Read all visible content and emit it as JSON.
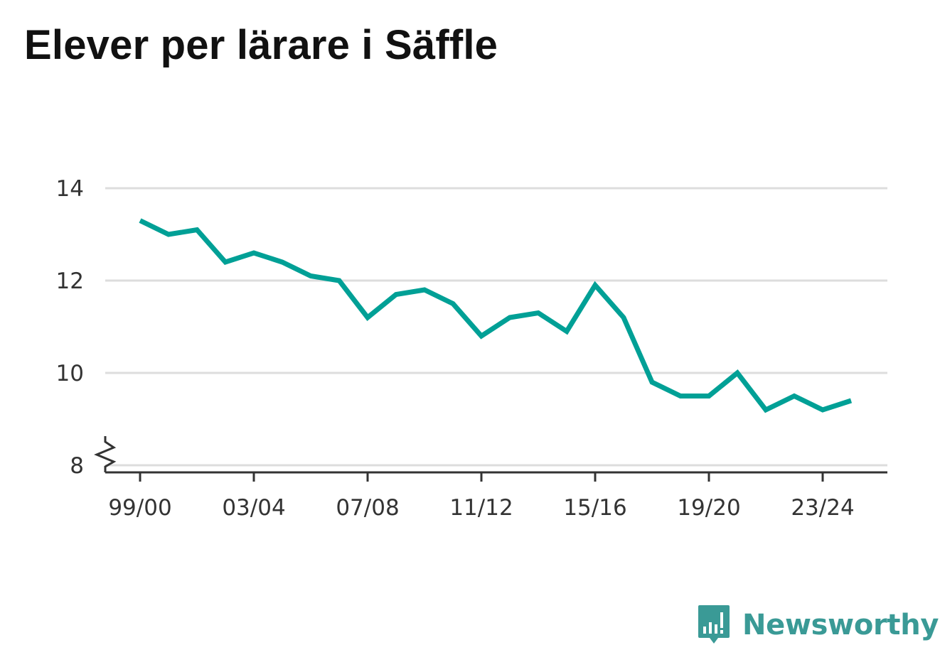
{
  "title": "Elever per lärare i Säffle",
  "brand": {
    "name": "Newsworthy",
    "logo_icon": "bar-chart-speech-bubble-icon",
    "color": "#3a9a96"
  },
  "chart_data": {
    "type": "line",
    "x": [
      "99/00",
      "00/01",
      "01/02",
      "02/03",
      "03/04",
      "04/05",
      "05/06",
      "06/07",
      "07/08",
      "08/09",
      "09/10",
      "10/11",
      "11/12",
      "12/13",
      "13/14",
      "14/15",
      "15/16",
      "16/17",
      "17/18",
      "18/19",
      "19/20",
      "20/21",
      "21/22",
      "22/23",
      "23/24",
      "24/25"
    ],
    "x_tick_labels": [
      "99/00",
      "03/04",
      "07/08",
      "11/12",
      "15/16",
      "19/20",
      "23/24"
    ],
    "series": [
      {
        "values": [
          13.3,
          13.0,
          13.1,
          12.4,
          12.6,
          12.4,
          12.1,
          12.0,
          11.2,
          11.7,
          11.8,
          11.5,
          10.8,
          11.2,
          11.3,
          10.9,
          11.9,
          11.2,
          9.8,
          9.5,
          9.5,
          10.0,
          9.2,
          9.5,
          9.2,
          9.4
        ],
        "color": "#00a096"
      }
    ],
    "y_ticks": [
      8,
      10,
      12,
      14
    ],
    "ylim": [
      8,
      14
    ],
    "y_axis_break": true,
    "grid": true,
    "xlabel": "",
    "ylabel": ""
  }
}
